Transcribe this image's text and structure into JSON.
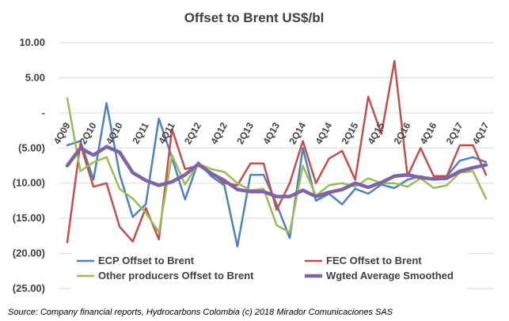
{
  "chart_data": {
    "type": "line",
    "title": "Offset to Brent US$/bl",
    "xlabel": "",
    "ylabel": "",
    "ylim": [
      -25,
      10
    ],
    "yticks": [
      10,
      5,
      0,
      -5,
      -10,
      -15,
      -20,
      -25
    ],
    "ytick_labels": [
      "10.00",
      "5.00",
      "-",
      "(5.00)",
      "(10.00)",
      "(15.00)",
      "(20.00)",
      "(25.00)"
    ],
    "categories": [
      "4Q09",
      "1Q10",
      "2Q10",
      "3Q10",
      "4Q10",
      "1Q11",
      "2Q11",
      "3Q11",
      "4Q11",
      "1Q12",
      "2Q12",
      "3Q12",
      "4Q12",
      "1Q13",
      "2Q13",
      "3Q13",
      "4Q13",
      "1Q14",
      "2Q14",
      "3Q14",
      "4Q14",
      "1Q15",
      "2Q15",
      "3Q15",
      "4Q15",
      "1Q16",
      "2Q16",
      "3Q16",
      "4Q16",
      "1Q17",
      "2Q17",
      "3Q17",
      "4Q17"
    ],
    "x_tick_labels": [
      "4Q09",
      "2Q10",
      "4Q10",
      "2Q11",
      "4Q11",
      "2Q12",
      "4Q12",
      "2Q13",
      "4Q13",
      "2Q14",
      "4Q14",
      "2Q15",
      "4Q15",
      "2Q16",
      "4Q16",
      "2Q17",
      "4Q17"
    ],
    "grid": true,
    "legend_position": "bottom",
    "series": [
      {
        "name": "ECP Offset to Brent",
        "color": "#4f81bd",
        "values": [
          -4.6,
          -4.0,
          -9.5,
          1.4,
          -8.7,
          -14.8,
          -13.0,
          -0.8,
          -6.4,
          -12.3,
          -7.0,
          -9.0,
          -10.3,
          -19.0,
          -8.8,
          -8.8,
          -13.0,
          -17.8,
          -5.0,
          -12.5,
          -11.5,
          -13.0,
          -10.8,
          -11.5,
          -10.2,
          -10.7,
          -9.5,
          -9.0,
          -9.5,
          -9.0,
          -6.8,
          -6.3,
          -7.0
        ]
      },
      {
        "name": "FEC Offset to Brent",
        "color": "#c0504d",
        "values": [
          -18.4,
          -4.4,
          -10.5,
          -10.0,
          -16.2,
          -18.3,
          -13.5,
          -18.0,
          -2.3,
          -8.0,
          -7.5,
          -8.5,
          -10.0,
          -10.3,
          -7.2,
          -7.2,
          -13.8,
          -10.0,
          -4.0,
          -10.0,
          -6.5,
          -5.4,
          -9.5,
          2.3,
          -3.0,
          7.4,
          -9.0,
          -5.0,
          -9.0,
          -9.0,
          -4.6,
          -4.6,
          -8.8
        ]
      },
      {
        "name": "Other producers Offset to Brent",
        "color": "#9bbb59",
        "values": [
          2.1,
          -8.3,
          -7.0,
          -6.3,
          -10.8,
          -12.2,
          -14.2,
          -17.0,
          -6.0,
          -10.2,
          -7.2,
          -8.0,
          -8.4,
          -10.0,
          -11.0,
          -10.8,
          -16.0,
          -17.0,
          -7.5,
          -11.8,
          -10.3,
          -10.0,
          -10.5,
          -9.3,
          -10.0,
          -10.0,
          -10.5,
          -9.3,
          -10.7,
          -10.3,
          -8.5,
          -8.3,
          -12.2
        ]
      },
      {
        "name": "Wgted Average Smoothed",
        "color": "#8064a2",
        "values": [
          -7.5,
          -5.0,
          -6.0,
          -4.8,
          -5.6,
          -8.5,
          -9.6,
          -10.3,
          -9.8,
          -8.8,
          -7.3,
          -8.6,
          -9.6,
          -10.9,
          -11.2,
          -11.2,
          -11.9,
          -11.9,
          -11.0,
          -11.9,
          -11.3,
          -10.9,
          -10.0,
          -10.6,
          -9.9,
          -9.0,
          -8.8,
          -9.2,
          -9.4,
          -9.3,
          -8.3,
          -7.8,
          -7.4
        ]
      }
    ],
    "source": "Source: Company financial reports, Hydrocarbons Colombia (c) 2018 Mirador Comunicaciones SAS"
  }
}
